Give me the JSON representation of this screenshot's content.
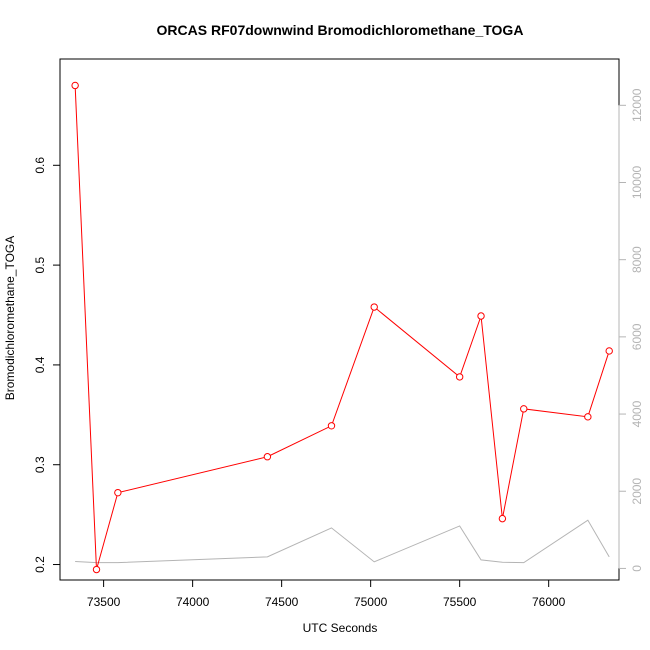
{
  "chart_data": {
    "type": "line",
    "title": "ORCAS RF07downwind Bromodichloromethane_TOGA",
    "xlabel": "UTC Seconds",
    "ylabel": "Bromodichloromethane_TOGA",
    "x_ticks": [
      73500,
      74000,
      74500,
      75000,
      75500,
      76000
    ],
    "y_ticks": [
      0.2,
      0.3,
      0.4,
      0.5,
      0.6
    ],
    "y2_ticks": [
      0,
      2000,
      4000,
      6000,
      8000,
      10000,
      12000
    ],
    "xlim": [
      73255,
      76395
    ],
    "ylim": [
      0.1845,
      0.7065
    ],
    "y2lim": [
      -300,
      13200
    ],
    "grid": false,
    "colors": {
      "primary": "#ff0000",
      "secondary": "#b4b4b4"
    },
    "series": [
      {
        "axis": "left",
        "style": "line-with-circle-markers",
        "x": [
          73340,
          73460,
          73580,
          74420,
          74780,
          75020,
          75500,
          75620,
          75740,
          75860,
          76220,
          76340
        ],
        "y": [
          0.68,
          0.195,
          0.272,
          0.308,
          0.339,
          0.458,
          0.388,
          0.449,
          0.246,
          0.356,
          0.348,
          0.414
        ]
      },
      {
        "axis": "right",
        "style": "line",
        "x": [
          73340,
          73460,
          73580,
          74420,
          74780,
          75020,
          75500,
          75620,
          75740,
          75860,
          76220,
          76340
        ],
        "y": [
          180,
          150,
          150,
          300,
          1050,
          170,
          1100,
          220,
          160,
          150,
          1250,
          300
        ]
      }
    ]
  }
}
